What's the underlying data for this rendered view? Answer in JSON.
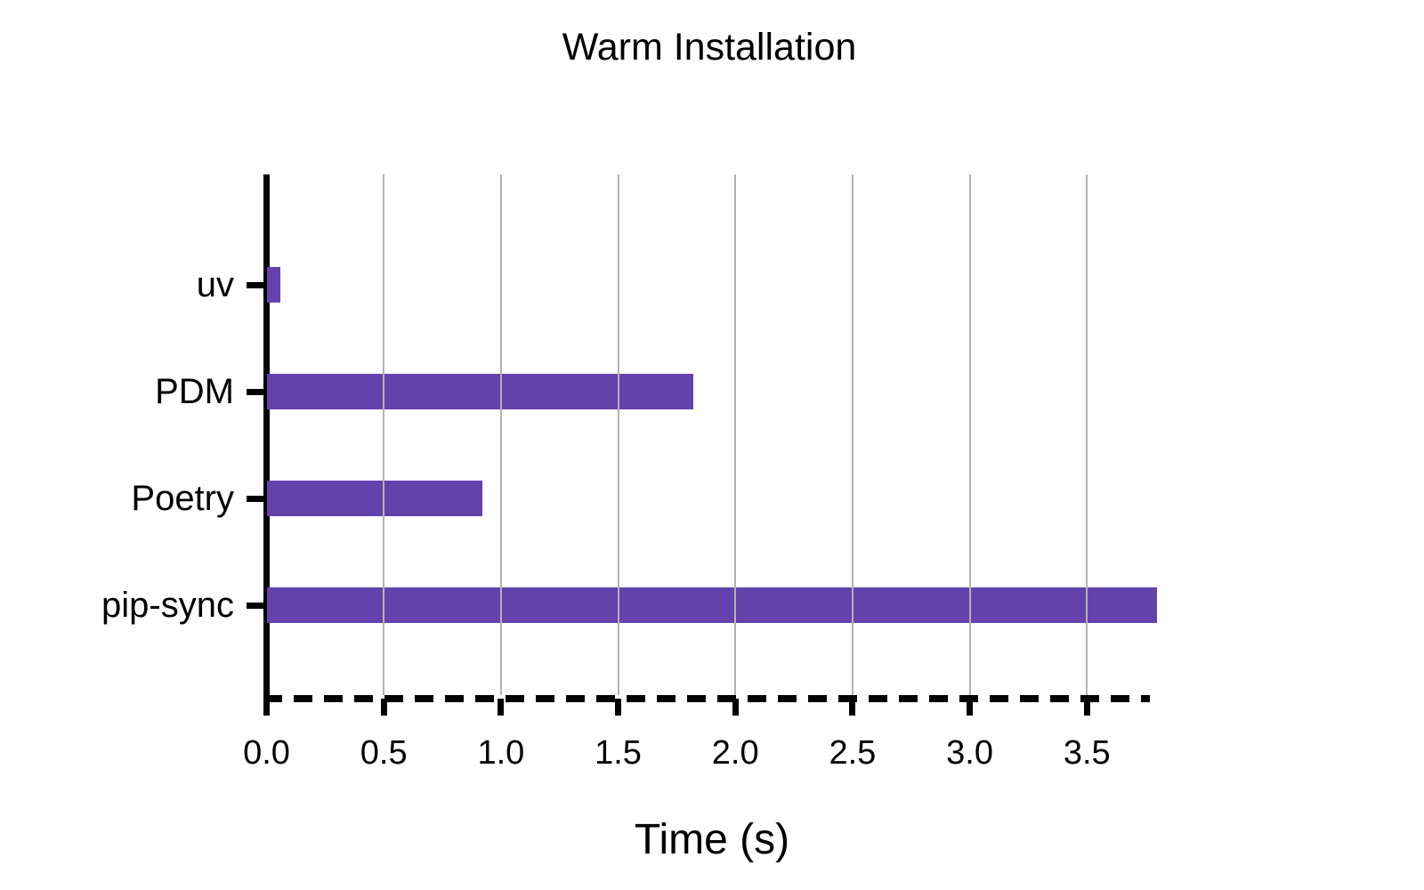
{
  "chart_data": {
    "type": "bar",
    "orientation": "horizontal",
    "title": "Warm Installation",
    "xlabel": "Time (s)",
    "categories": [
      "uv",
      "PDM",
      "Poetry",
      "pip-sync"
    ],
    "values": [
      0.06,
      1.82,
      0.92,
      3.8
    ],
    "xlim": [
      0,
      3.78
    ],
    "xticks": [
      0,
      0.5,
      1,
      1.5,
      2,
      2.5,
      3,
      3.5
    ],
    "xtick_labels": [
      "0.0",
      "0.5",
      "1.0",
      "1.5",
      "2.0",
      "2.5",
      "3.0",
      "3.5"
    ],
    "grid": true,
    "legend": "none",
    "colors": {
      "bar": "#6442ac",
      "gridline": "#b3b3b3",
      "axis": "#000000",
      "text": "#000000",
      "background": "#ffffff"
    },
    "axis_style": {
      "x_axis_line": "dashed",
      "y_axis_line": "solid"
    }
  }
}
